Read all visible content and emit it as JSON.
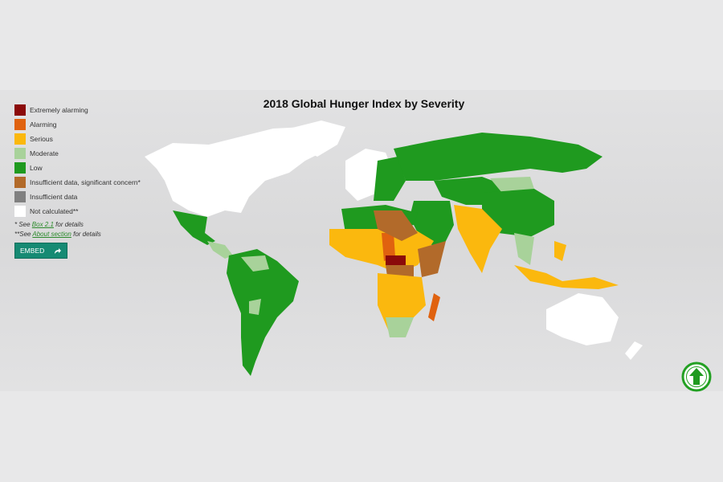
{
  "title": "2018 Global Hunger Index by Severity",
  "legend": [
    {
      "label": "Extremely alarming",
      "color": "#8b0a0a"
    },
    {
      "label": "Alarming",
      "color": "#e0620f"
    },
    {
      "label": "Serious",
      "color": "#fbb80e"
    },
    {
      "label": "Moderate",
      "color": "#a8d29a"
    },
    {
      "label": "Low",
      "color": "#1f9a1f"
    },
    {
      "label": "Insufficient data, significant concern*",
      "color": "#b26a2a"
    },
    {
      "label": "Insufficient data",
      "color": "#808080"
    },
    {
      "label": "Not calculated**",
      "color": "#ffffff"
    }
  ],
  "notes": {
    "note1_prefix": "* See ",
    "note1_link": "Box 2.1",
    "note1_suffix": " for details",
    "note2_prefix": "**See ",
    "note2_link": "About section",
    "note2_suffix": " for details"
  },
  "embed_label": "EMBED",
  "icons": {
    "embed": "share-arrow-icon",
    "top": "arrow-up-circle-icon"
  }
}
